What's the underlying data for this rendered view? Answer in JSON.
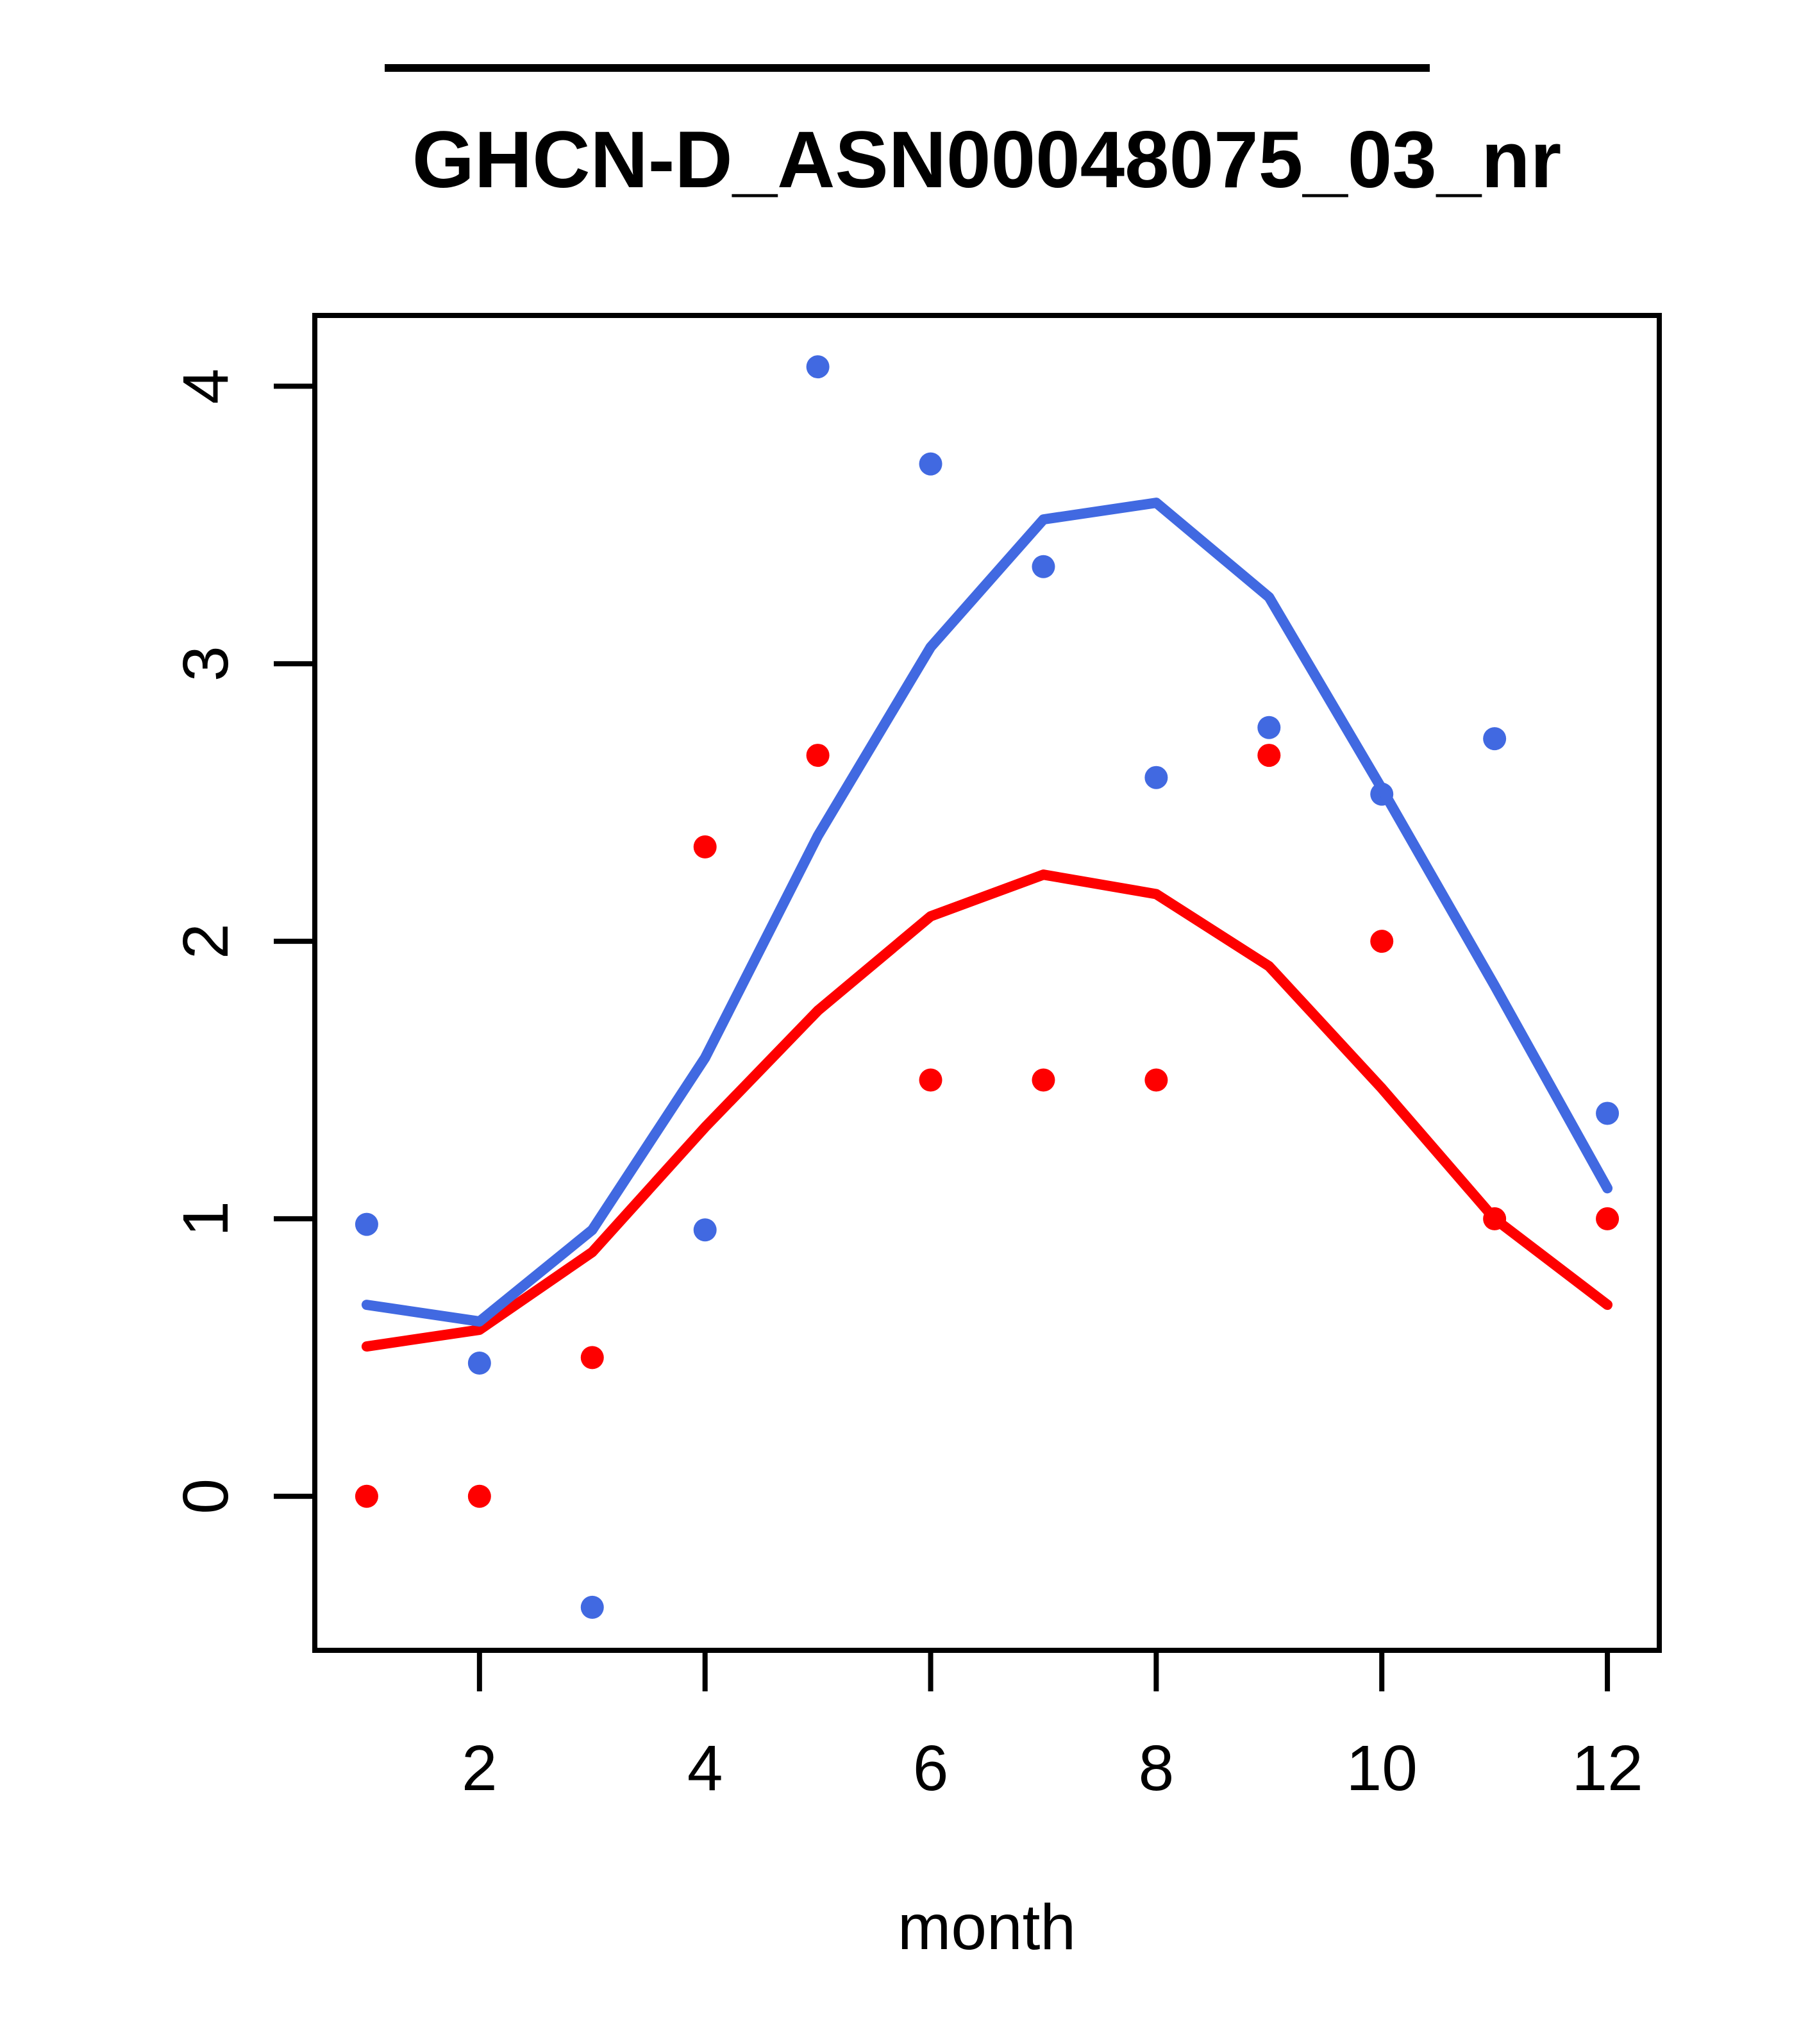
{
  "chart_data": {
    "type": "scatter",
    "title": "GHCN-D_ASN00048075_03_nr",
    "xlabel": "month",
    "ylabel": "",
    "x": [
      1,
      2,
      3,
      4,
      5,
      6,
      7,
      8,
      9,
      10,
      11,
      12
    ],
    "x_ticks": [
      2,
      4,
      6,
      8,
      10,
      12
    ],
    "y_ticks": [
      0,
      1,
      2,
      3,
      4
    ],
    "xlim": [
      0.54,
      12.46
    ],
    "ylim": [
      -0.555,
      4.255
    ],
    "grid": "off",
    "legend": "none",
    "colors": {
      "blue": "#4169E1",
      "red": "#FE0000",
      "frame": "#000000"
    },
    "series": [
      {
        "name": "blue-points",
        "kind": "points",
        "color": "#4169E1",
        "values": [
          0.98,
          0.48,
          -0.4,
          0.96,
          4.07,
          3.72,
          3.35,
          2.59,
          2.77,
          2.53,
          2.73,
          1.38
        ]
      },
      {
        "name": "red-points",
        "kind": "points",
        "color": "#FE0000",
        "values": [
          0.0,
          0.0,
          0.5,
          2.34,
          2.67,
          1.5,
          1.5,
          1.5,
          2.67,
          2.0,
          1.0,
          1.0
        ]
      },
      {
        "name": "red-line",
        "kind": "line",
        "color": "#FE0000",
        "values": [
          0.54,
          0.6,
          0.88,
          1.33,
          1.75,
          2.09,
          2.24,
          2.17,
          1.91,
          1.47,
          1.0,
          0.69
        ]
      },
      {
        "name": "blue-line",
        "kind": "line",
        "color": "#4169E1",
        "values": [
          0.69,
          0.63,
          0.96,
          1.58,
          2.38,
          3.06,
          3.52,
          3.58,
          3.24,
          2.55,
          1.84,
          1.11
        ]
      }
    ]
  }
}
